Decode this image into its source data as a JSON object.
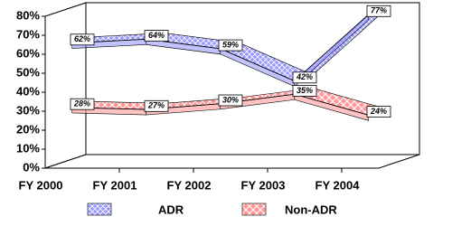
{
  "chart_data": {
    "type": "line",
    "categories": [
      "FY 2000",
      "FY 2001",
      "FY 2002",
      "FY 2003",
      "FY 2004"
    ],
    "series": [
      {
        "name": "ADR",
        "color": "#9999ff",
        "values": [
          62,
          64,
          59,
          42,
          77
        ],
        "value_labels": [
          "62%",
          "64%",
          "59%",
          "42%",
          "77%"
        ]
      },
      {
        "name": "Non-ADR",
        "color": "#ff9999",
        "values": [
          28,
          27,
          30,
          35,
          24
        ],
        "value_labels": [
          "28%",
          "27%",
          "30%",
          "35%",
          "24%"
        ]
      }
    ],
    "ylim": [
      0,
      80
    ],
    "yticks": [
      {
        "value": 0,
        "label": "0%"
      },
      {
        "value": 10,
        "label": "10%"
      },
      {
        "value": 20,
        "label": "20%"
      },
      {
        "value": 30,
        "label": "30%"
      },
      {
        "value": 40,
        "label": "40%"
      },
      {
        "value": 50,
        "label": "50%"
      },
      {
        "value": 60,
        "label": "60%"
      },
      {
        "value": 70,
        "label": "70%"
      },
      {
        "value": 80,
        "label": "80%"
      }
    ]
  }
}
